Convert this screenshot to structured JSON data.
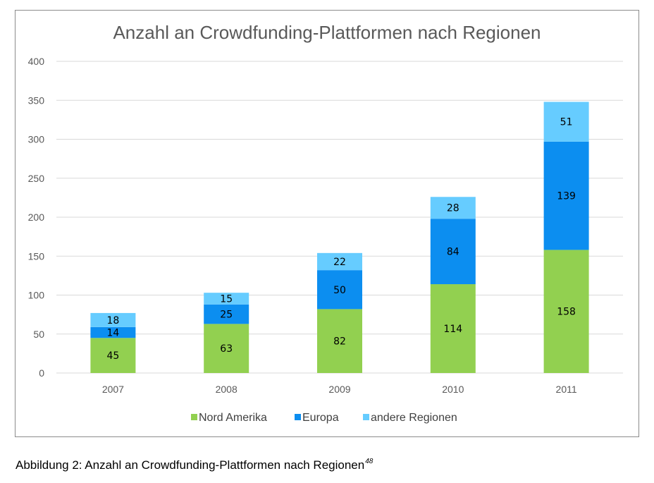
{
  "chart_data": {
    "type": "bar",
    "stacked": true,
    "title": "Anzahl an Crowdfunding-Plattformen nach Regionen",
    "categories": [
      "2007",
      "2008",
      "2009",
      "2010",
      "2011"
    ],
    "series": [
      {
        "name": "Nord Amerika",
        "color": "#92d050",
        "values": [
          45,
          63,
          82,
          114,
          158
        ]
      },
      {
        "name": "Europa",
        "color": "#0c8ef0",
        "values": [
          14,
          25,
          50,
          84,
          139
        ]
      },
      {
        "name": "andere Regionen",
        "color": "#66ccff",
        "values": [
          18,
          15,
          22,
          28,
          51
        ]
      }
    ],
    "ylim": [
      0,
      400
    ],
    "yticks": [
      0,
      50,
      100,
      150,
      200,
      250,
      300,
      350,
      400
    ],
    "grid": true,
    "legend": "bottom",
    "xlabel": "",
    "ylabel": ""
  },
  "caption": {
    "text": "Abbildung 2: Anzahl an Crowdfunding-Plattformen nach Regionen",
    "footnote": "48"
  }
}
